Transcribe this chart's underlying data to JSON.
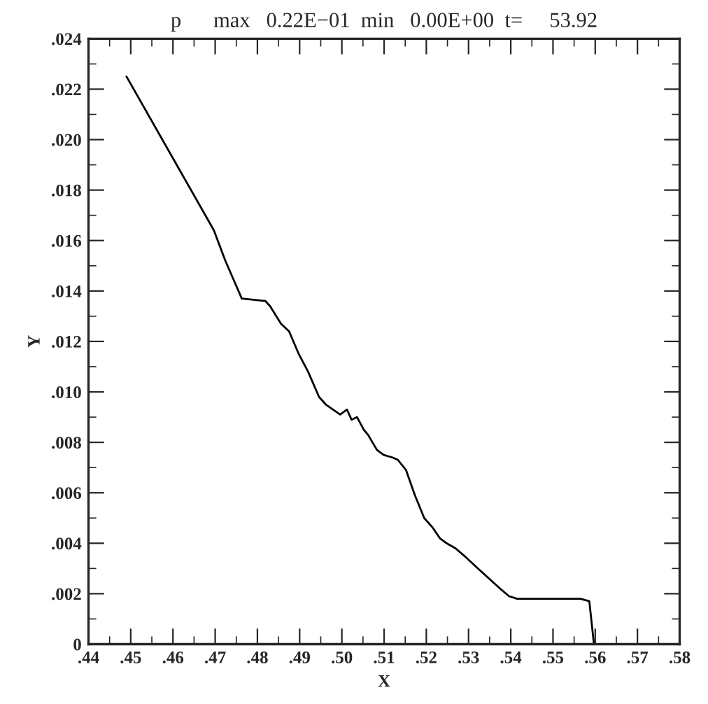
{
  "chart_data": {
    "type": "line",
    "title": "p      max   0.22E−01  min   0.00E+00  t=     53.92",
    "xlabel": "X",
    "ylabel": "Y",
    "series": [
      {
        "color": "#000000",
        "x": [
          0.449,
          0.4687,
          0.4697,
          0.4724,
          0.4763,
          0.4819,
          0.483,
          0.4856,
          0.4875,
          0.4898,
          0.492,
          0.4946,
          0.4962,
          0.4996,
          0.5012,
          0.5023,
          0.5036,
          0.5052,
          0.5062,
          0.5083,
          0.5099,
          0.512,
          0.5133,
          0.5152,
          0.5173,
          0.5195,
          0.5216,
          0.5232,
          0.5248,
          0.5269,
          0.529,
          0.5322,
          0.5375,
          0.5396,
          0.5415,
          0.5491,
          0.5528,
          0.5565,
          0.5586,
          0.5597,
          0.5745
        ],
        "values": [
          0.0225,
          0.0167,
          0.0164,
          0.0152,
          0.0137,
          0.0136,
          0.0134,
          0.0127,
          0.0124,
          0.0115,
          0.0108,
          0.0098,
          0.0095,
          0.0091,
          0.0093,
          0.0089,
          0.009,
          0.0085,
          0.0083,
          0.0077,
          0.0075,
          0.0074,
          0.0073,
          0.0069,
          0.0059,
          0.005,
          0.0046,
          0.0042,
          0.004,
          0.0038,
          0.0035,
          0.003,
          0.0022,
          0.0019,
          0.0018,
          0.0018,
          0.0018,
          0.0018,
          0.0017,
          0.0,
          0.0
        ]
      }
    ],
    "xlim": [
      0.44,
      0.58
    ],
    "ylim": [
      0,
      0.024
    ],
    "xticks": [
      {
        "value": 0.44,
        "label": ".44"
      },
      {
        "value": 0.445,
        "label": null
      },
      {
        "value": 0.45,
        "label": ".45"
      },
      {
        "value": 0.455,
        "label": null
      },
      {
        "value": 0.46,
        "label": ".46"
      },
      {
        "value": 0.465,
        "label": null
      },
      {
        "value": 0.47,
        "label": ".47"
      },
      {
        "value": 0.475,
        "label": null
      },
      {
        "value": 0.48,
        "label": ".48"
      },
      {
        "value": 0.485,
        "label": null
      },
      {
        "value": 0.49,
        "label": ".49"
      },
      {
        "value": 0.495,
        "label": null
      },
      {
        "value": 0.5,
        "label": ".50"
      },
      {
        "value": 0.505,
        "label": null
      },
      {
        "value": 0.51,
        "label": ".51"
      },
      {
        "value": 0.515,
        "label": null
      },
      {
        "value": 0.52,
        "label": ".52"
      },
      {
        "value": 0.525,
        "label": null
      },
      {
        "value": 0.53,
        "label": ".53"
      },
      {
        "value": 0.535,
        "label": null
      },
      {
        "value": 0.54,
        "label": ".54"
      },
      {
        "value": 0.545,
        "label": null
      },
      {
        "value": 0.55,
        "label": ".55"
      },
      {
        "value": 0.555,
        "label": null
      },
      {
        "value": 0.56,
        "label": ".56"
      },
      {
        "value": 0.565,
        "label": null
      },
      {
        "value": 0.57,
        "label": ".57"
      },
      {
        "value": 0.575,
        "label": null
      },
      {
        "value": 0.58,
        "label": ".58"
      }
    ],
    "yticks": [
      0,
      {
        "value": 0.001,
        "label": null
      },
      {
        "value": 0.002,
        "label": ".002"
      },
      {
        "value": 0.003,
        "label": null
      },
      {
        "value": 0.004,
        "label": ".004"
      },
      {
        "value": 0.005,
        "label": null
      },
      {
        "value": 0.006,
        "label": ".006"
      },
      {
        "value": 0.007,
        "label": null
      },
      {
        "value": 0.008,
        "label": ".008"
      },
      {
        "value": 0.009,
        "label": null
      },
      {
        "value": 0.01,
        "label": ".010"
      },
      {
        "value": 0.011,
        "label": null
      },
      {
        "value": 0.012,
        "label": ".012"
      },
      {
        "value": 0.013,
        "label": null
      },
      {
        "value": 0.014,
        "label": ".014"
      },
      {
        "value": 0.015,
        "label": null
      },
      {
        "value": 0.016,
        "label": ".016"
      },
      {
        "value": 0.017,
        "label": null
      },
      {
        "value": 0.018,
        "label": ".018"
      },
      {
        "value": 0.019,
        "label": null
      },
      {
        "value": 0.02,
        "label": ".020"
      },
      {
        "value": 0.021,
        "label": null
      },
      {
        "value": 0.022,
        "label": ".022"
      },
      {
        "value": 0.023,
        "label": null
      },
      {
        "value": 0.024,
        "label": ".024"
      }
    ],
    "grid": false,
    "legend": false,
    "marker": "none",
    "line_style": "solid"
  }
}
